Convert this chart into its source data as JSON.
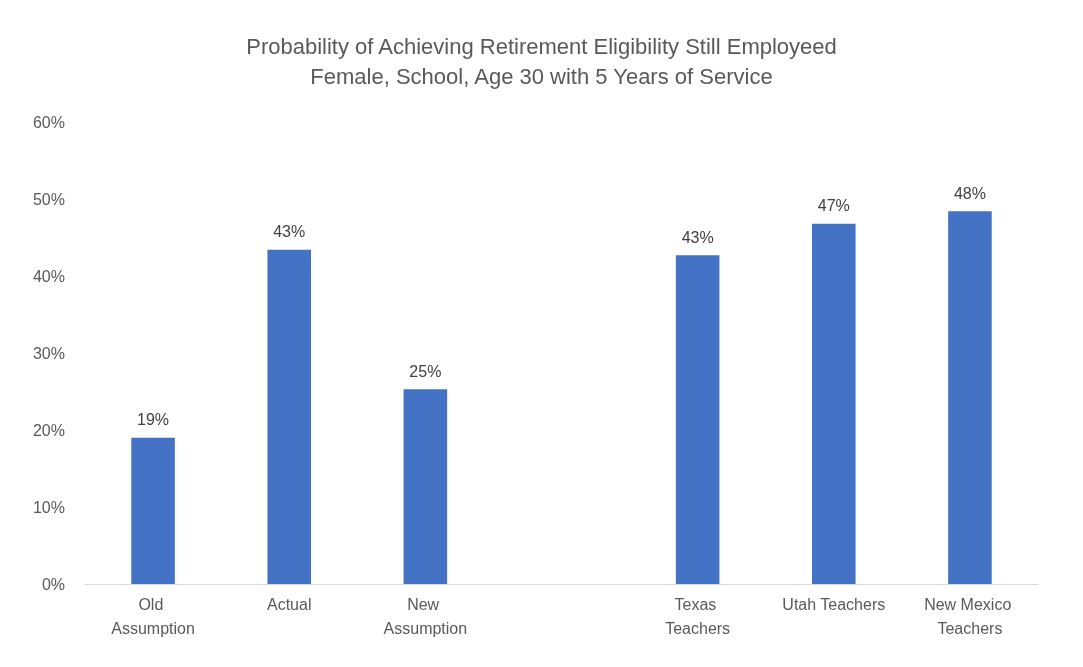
{
  "chart_data": {
    "type": "bar",
    "title": "Probability of Achieving Retirement Eligibility Still Employeed",
    "subtitle": "Female, School, Age 30 with 5 Years of Service",
    "categories": [
      "Old Assumption",
      "Actual",
      "New Assumption",
      null,
      "Texas Teachers",
      "Utah Teachers",
      "New Mexico Teachers"
    ],
    "values": [
      19,
      43.4,
      25.3,
      null,
      42.7,
      46.8,
      48.4
    ],
    "value_labels": [
      "19%",
      "43%",
      "25%",
      null,
      "43%",
      "47%",
      "48%"
    ],
    "color": "#4472c4",
    "ylim": [
      0,
      60
    ],
    "yticks": [
      {
        "value": 0,
        "label": "0%"
      },
      {
        "value": 10,
        "label": "10%"
      },
      {
        "value": 20,
        "label": "20%"
      },
      {
        "value": 30,
        "label": "30%"
      },
      {
        "value": 40,
        "label": "40%"
      },
      {
        "value": 50,
        "label": "50%"
      },
      {
        "value": 60,
        "label": "60%"
      }
    ],
    "grid": false
  }
}
